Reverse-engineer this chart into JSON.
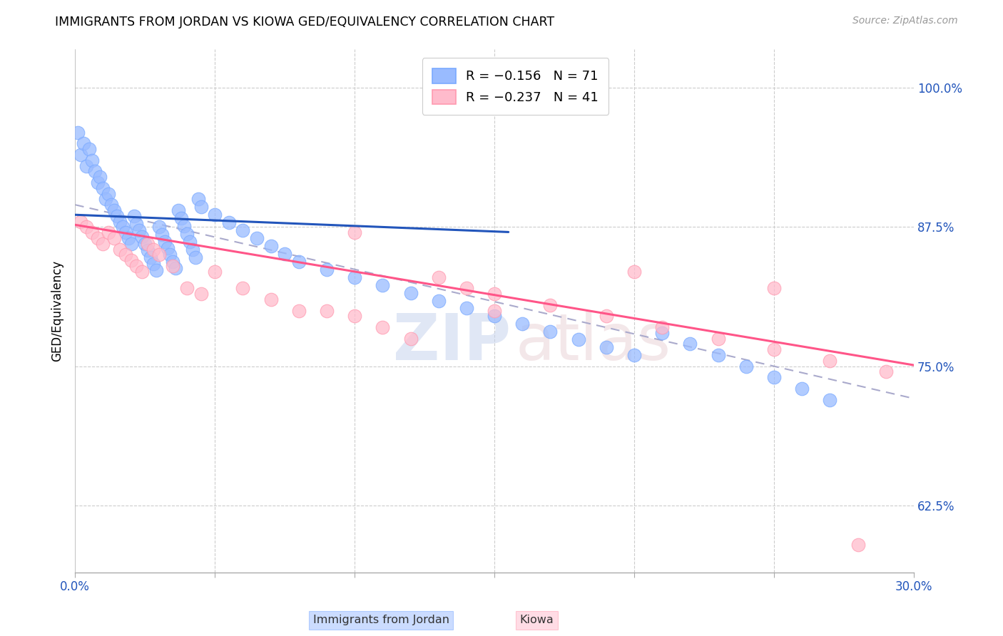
{
  "title": "IMMIGRANTS FROM JORDAN VS KIOWA GED/EQUIVALENCY CORRELATION CHART",
  "source": "Source: ZipAtlas.com",
  "ylabel": "GED/Equivalency",
  "xmin": 0.0,
  "xmax": 0.3,
  "ymin": 0.565,
  "ymax": 1.035,
  "jordan_color": "#7aaaff",
  "kiowa_color": "#ff9ab0",
  "trend_jordan_color": "#2255bb",
  "trend_kiowa_color": "#ff5588",
  "trend_dashed_color": "#aaaacc",
  "jordan_color_fill": "#99bbff",
  "kiowa_color_fill": "#ffbbcc",
  "jordan_points_x": [
    0.001,
    0.002,
    0.003,
    0.004,
    0.005,
    0.006,
    0.007,
    0.008,
    0.009,
    0.01,
    0.011,
    0.012,
    0.013,
    0.014,
    0.015,
    0.016,
    0.017,
    0.018,
    0.019,
    0.02,
    0.021,
    0.022,
    0.023,
    0.024,
    0.025,
    0.026,
    0.027,
    0.028,
    0.029,
    0.03,
    0.031,
    0.032,
    0.033,
    0.034,
    0.035,
    0.036,
    0.037,
    0.038,
    0.039,
    0.04,
    0.041,
    0.042,
    0.043,
    0.044,
    0.045,
    0.05,
    0.055,
    0.06,
    0.065,
    0.07,
    0.075,
    0.08,
    0.09,
    0.1,
    0.11,
    0.12,
    0.13,
    0.14,
    0.15,
    0.16,
    0.17,
    0.18,
    0.19,
    0.2,
    0.21,
    0.22,
    0.23,
    0.24,
    0.25,
    0.26,
    0.27
  ],
  "jordan_points_y": [
    0.96,
    0.94,
    0.95,
    0.93,
    0.945,
    0.935,
    0.925,
    0.915,
    0.92,
    0.91,
    0.9,
    0.905,
    0.895,
    0.89,
    0.885,
    0.88,
    0.875,
    0.87,
    0.865,
    0.86,
    0.885,
    0.878,
    0.872,
    0.866,
    0.86,
    0.854,
    0.848,
    0.842,
    0.836,
    0.875,
    0.868,
    0.862,
    0.856,
    0.85,
    0.844,
    0.838,
    0.89,
    0.883,
    0.876,
    0.869,
    0.862,
    0.855,
    0.848,
    0.9,
    0.893,
    0.886,
    0.879,
    0.872,
    0.865,
    0.858,
    0.851,
    0.844,
    0.837,
    0.83,
    0.823,
    0.816,
    0.809,
    0.802,
    0.795,
    0.788,
    0.781,
    0.774,
    0.767,
    0.76,
    0.78,
    0.77,
    0.76,
    0.75,
    0.74,
    0.73,
    0.72
  ],
  "kiowa_points_x": [
    0.002,
    0.004,
    0.006,
    0.008,
    0.01,
    0.012,
    0.014,
    0.016,
    0.018,
    0.02,
    0.022,
    0.024,
    0.026,
    0.028,
    0.03,
    0.035,
    0.04,
    0.045,
    0.05,
    0.06,
    0.07,
    0.08,
    0.09,
    0.1,
    0.11,
    0.12,
    0.13,
    0.14,
    0.15,
    0.17,
    0.19,
    0.21,
    0.23,
    0.25,
    0.27,
    0.29,
    0.1,
    0.15,
    0.2,
    0.25,
    0.28
  ],
  "kiowa_points_y": [
    0.88,
    0.875,
    0.87,
    0.865,
    0.86,
    0.87,
    0.865,
    0.855,
    0.85,
    0.845,
    0.84,
    0.835,
    0.86,
    0.855,
    0.85,
    0.84,
    0.82,
    0.815,
    0.835,
    0.82,
    0.81,
    0.8,
    0.8,
    0.795,
    0.785,
    0.775,
    0.83,
    0.82,
    0.815,
    0.805,
    0.795,
    0.785,
    0.775,
    0.765,
    0.755,
    0.745,
    0.87,
    0.8,
    0.835,
    0.82,
    0.59
  ],
  "legend_jordan": "Immigrants from Jordan",
  "legend_kiowa": "Kiowa",
  "legend_r_jordan": "R = −0.156",
  "legend_n_jordan": "N = 71",
  "legend_r_kiowa": "R = −0.237",
  "legend_n_kiowa": "N = 41"
}
